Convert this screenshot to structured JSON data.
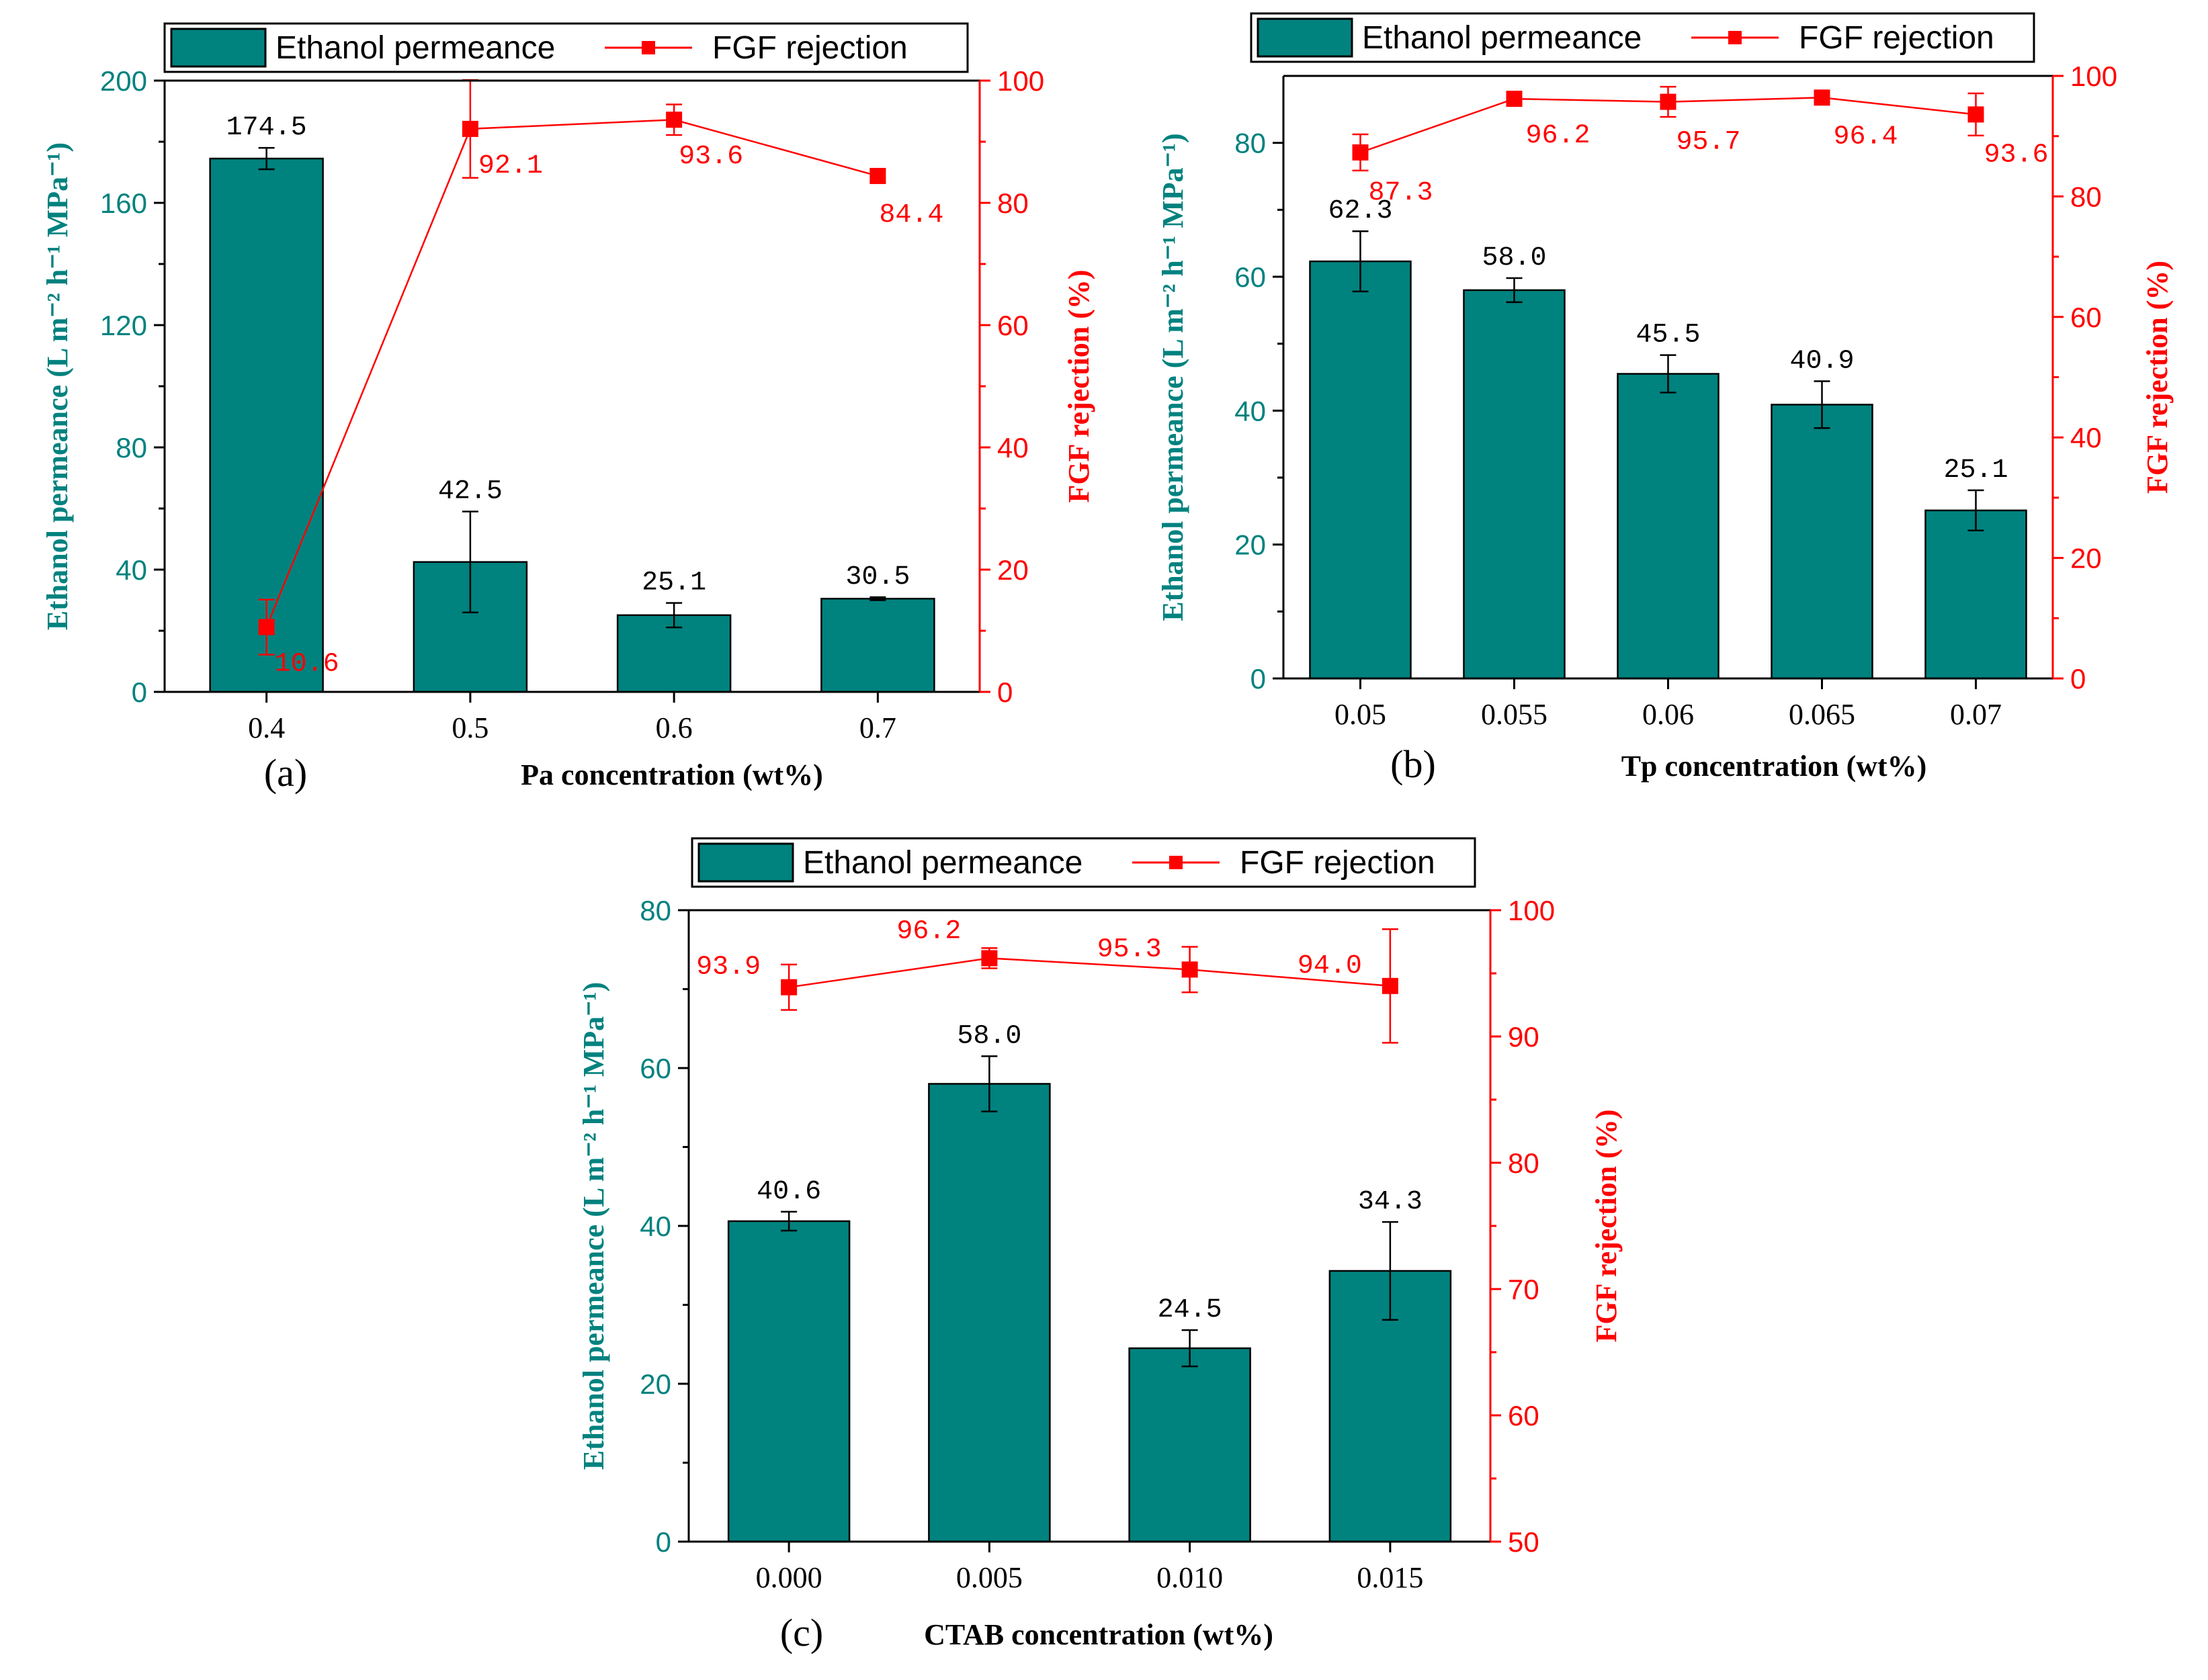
{
  "colors": {
    "bar": "#00827F",
    "line": "#FF0000",
    "left_axis": "#00827F",
    "right_axis": "#FF0000",
    "frame": "#000000"
  },
  "legend": {
    "bar_label": "Ethanol permeance",
    "line_label": "FGF rejection"
  },
  "chart_data": [
    {
      "panel": "(a)",
      "type": "bar",
      "xlabel": "Pa concentration (wt%)",
      "ylabel": "Ethanol permeance (L m⁻² h⁻¹ MPa⁻¹)",
      "y2label": "FGF rejection (%)",
      "categories": [
        "0.4",
        "0.5",
        "0.6",
        "0.7"
      ],
      "ylim": [
        0,
        200
      ],
      "yticks": [
        0,
        40,
        80,
        120,
        160,
        200
      ],
      "y2lim": [
        0,
        100
      ],
      "y2ticks": [
        0,
        20,
        40,
        60,
        80,
        100
      ],
      "series": [
        {
          "name": "Ethanol permeance",
          "kind": "bar",
          "axis": "left",
          "values": [
            174.5,
            42.5,
            25.1,
            30.5
          ],
          "errors": [
            3.5,
            16.5,
            4.0,
            0.5
          ],
          "labels": [
            "174.5",
            "42.5",
            "25.1",
            "30.5"
          ]
        },
        {
          "name": "FGF rejection",
          "kind": "line",
          "axis": "right",
          "values": [
            10.6,
            92.1,
            93.6,
            84.4
          ],
          "errors": [
            4.5,
            8.0,
            2.5,
            1.0
          ],
          "labels": [
            "10.6",
            "92.1",
            "93.6",
            "84.4"
          ]
        }
      ]
    },
    {
      "panel": "(b)",
      "type": "bar",
      "xlabel": "Tp concentration (wt%)",
      "ylabel": "Ethanol permeance (L m⁻² h⁻¹ MPa⁻¹)",
      "y2label": "FGF rejection (%)",
      "categories": [
        "0.05",
        "0.055",
        "0.06",
        "0.065",
        "0.07"
      ],
      "ylim": [
        0,
        90
      ],
      "yticks": [
        0,
        20,
        40,
        60,
        80
      ],
      "y2lim": [
        0,
        100
      ],
      "y2ticks": [
        0,
        20,
        40,
        60,
        80,
        100
      ],
      "series": [
        {
          "name": "Ethanol permeance",
          "kind": "bar",
          "axis": "left",
          "values": [
            62.3,
            58.0,
            45.5,
            40.9,
            25.1
          ],
          "errors": [
            4.5,
            1.8,
            2.8,
            3.5,
            3.0
          ],
          "labels": [
            "62.3",
            "58.0",
            "45.5",
            "40.9",
            "25.1"
          ]
        },
        {
          "name": "FGF rejection",
          "kind": "line",
          "axis": "right",
          "values": [
            87.3,
            96.2,
            95.7,
            96.4,
            93.6
          ],
          "errors": [
            3.0,
            0.6,
            2.5,
            0.6,
            3.5
          ],
          "labels": [
            "87.3",
            "96.2",
            "95.7",
            "96.4",
            "93.6"
          ]
        }
      ]
    },
    {
      "panel": "(c)",
      "type": "bar",
      "xlabel": "CTAB concentration (wt%)",
      "ylabel": "Ethanol permeance (L m⁻² h⁻¹ MPa⁻¹)",
      "y2label": "FGF rejection (%)",
      "categories": [
        "0.000",
        "0.005",
        "0.010",
        "0.015"
      ],
      "ylim": [
        0,
        80
      ],
      "yticks": [
        0,
        20,
        40,
        60,
        80
      ],
      "y2lim": [
        50,
        100
      ],
      "y2ticks": [
        50,
        60,
        70,
        80,
        90,
        100
      ],
      "series": [
        {
          "name": "Ethanol permeance",
          "kind": "bar",
          "axis": "left",
          "values": [
            40.6,
            58.0,
            24.5,
            34.3
          ],
          "errors": [
            1.2,
            3.5,
            2.3,
            6.2
          ],
          "labels": [
            "40.6",
            "58.0",
            "24.5",
            "34.3"
          ]
        },
        {
          "name": "FGF rejection",
          "kind": "line",
          "axis": "right",
          "values": [
            93.9,
            96.2,
            95.3,
            94.0
          ],
          "errors": [
            1.8,
            0.8,
            1.8,
            4.5
          ],
          "labels": [
            "93.9",
            "96.2",
            "95.3",
            "94.0"
          ]
        }
      ]
    }
  ]
}
